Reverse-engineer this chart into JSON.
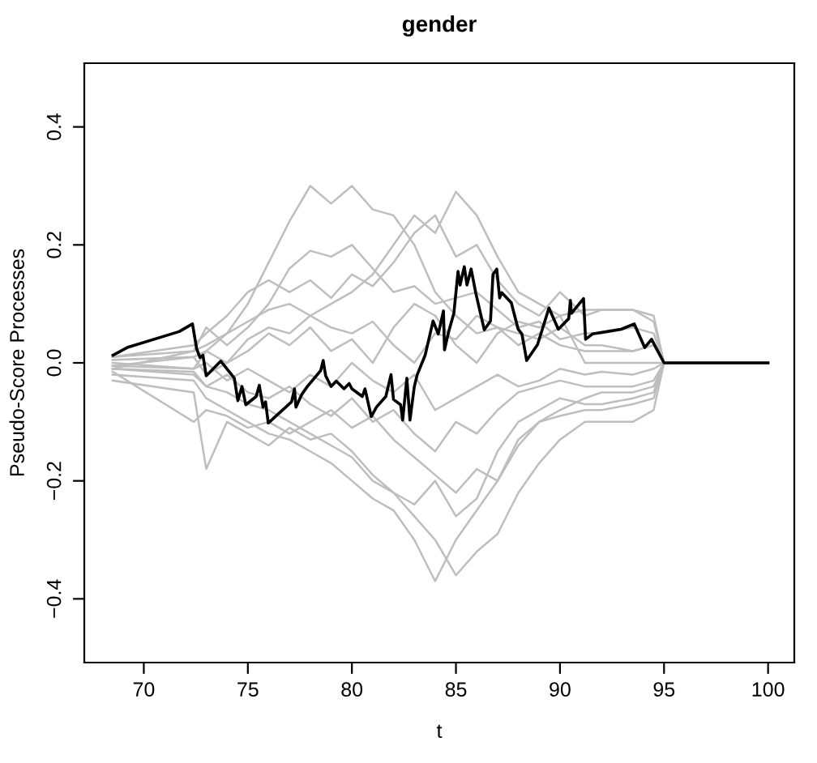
{
  "chart_data": {
    "type": "line",
    "title": "gender",
    "xlabel": "t",
    "ylabel": "Pseudo-Score Processes",
    "xlim": [
      67.14,
      101.26
    ],
    "ylim": [
      -0.508,
      0.508
    ],
    "xticks": [
      70,
      75,
      80,
      85,
      90,
      95,
      100
    ],
    "yticks": [
      {
        "value": -0.4,
        "label": "−0.4"
      },
      {
        "value": -0.2,
        "label": "−0.2"
      },
      {
        "value": 0,
        "label": "0.0"
      },
      {
        "value": 0.2,
        "label": "0.2"
      },
      {
        "value": 0.4,
        "label": "0.4"
      }
    ],
    "grid": false,
    "line_style": "solid",
    "marker": "none",
    "x": [
      68.5,
      72.4,
      73,
      74,
      75,
      76,
      77,
      78,
      79,
      80,
      81,
      82,
      83,
      84,
      85,
      86,
      87,
      88,
      89,
      90,
      91.2,
      92,
      93.5,
      94.5,
      95,
      100
    ],
    "series": [
      {
        "color": "#bebebe",
        "values": [
          -0.01,
          0.02,
          0.03,
          0.05,
          0.1,
          0.17,
          0.24,
          0.3,
          0.27,
          0.3,
          0.26,
          0.25,
          0.2,
          0.12,
          0.08,
          0.05,
          0.06,
          0.05,
          0.04,
          0.06,
          0.03,
          0.03,
          0.02,
          0.03,
          0,
          0
        ]
      },
      {
        "color": "#bebebe",
        "values": [
          -0.005,
          0.01,
          0.02,
          0.0,
          0.04,
          0.06,
          0.05,
          0.08,
          0.1,
          0.12,
          0.15,
          0.2,
          0.25,
          0.22,
          0.29,
          0.25,
          0.18,
          0.12,
          0.1,
          0.08,
          0.09,
          0.09,
          0.09,
          0.08,
          0,
          0
        ]
      },
      {
        "color": "#bebebe",
        "values": [
          -0.02,
          -0.03,
          -0.06,
          -0.08,
          -0.1,
          -0.12,
          -0.13,
          -0.15,
          -0.17,
          -0.2,
          -0.23,
          -0.25,
          -0.3,
          -0.37,
          -0.3,
          -0.25,
          -0.2,
          -0.14,
          -0.1,
          -0.08,
          -0.06,
          -0.05,
          -0.05,
          -0.04,
          0,
          0
        ]
      },
      {
        "color": "#bebebe",
        "values": [
          -0.01,
          -0.02,
          -0.04,
          -0.05,
          -0.07,
          -0.08,
          -0.1,
          -0.12,
          -0.14,
          -0.16,
          -0.2,
          -0.22,
          -0.26,
          -0.3,
          -0.36,
          -0.32,
          -0.29,
          -0.22,
          -0.17,
          -0.13,
          -0.1,
          -0.1,
          -0.1,
          -0.08,
          0,
          0
        ]
      },
      {
        "color": "#bebebe",
        "values": [
          -0.03,
          -0.05,
          -0.18,
          -0.1,
          -0.12,
          -0.14,
          -0.11,
          -0.13,
          -0.12,
          -0.15,
          -0.19,
          -0.22,
          -0.24,
          -0.2,
          -0.26,
          -0.23,
          -0.15,
          -0.1,
          -0.08,
          -0.06,
          -0.07,
          -0.07,
          -0.06,
          -0.05,
          0,
          0
        ]
      },
      {
        "color": "#bebebe",
        "values": [
          0.01,
          0.03,
          0.05,
          0.08,
          0.12,
          0.14,
          0.12,
          0.14,
          0.11,
          0.15,
          0.13,
          0.17,
          0.22,
          0.25,
          0.18,
          0.2,
          0.14,
          0.1,
          0.08,
          0.12,
          0.08,
          0.09,
          0.09,
          0.07,
          0,
          0
        ]
      },
      {
        "color": "#bebebe",
        "values": [
          0.0,
          -0.01,
          0.02,
          0.05,
          0.07,
          0.09,
          0.1,
          0.08,
          0.06,
          0.05,
          0.07,
          0.03,
          0.0,
          0.05,
          0.04,
          0.08,
          0.06,
          0.03,
          0.05,
          0.03,
          0.02,
          0.02,
          0.02,
          0.03,
          0,
          0
        ]
      },
      {
        "color": "#bebebe",
        "values": [
          -0.01,
          -0.015,
          -0.04,
          -0.02,
          -0.05,
          -0.06,
          -0.04,
          -0.07,
          -0.09,
          -0.06,
          -0.1,
          -0.08,
          -0.12,
          -0.15,
          -0.1,
          -0.12,
          -0.08,
          -0.05,
          -0.04,
          -0.03,
          -0.04,
          -0.04,
          -0.04,
          -0.03,
          0,
          0
        ]
      },
      {
        "color": "#bebebe",
        "values": [
          -0.015,
          -0.1,
          -0.08,
          -0.09,
          -0.11,
          -0.1,
          -0.12,
          -0.1,
          -0.08,
          -0.11,
          -0.09,
          -0.13,
          -0.16,
          -0.19,
          -0.22,
          -0.18,
          -0.2,
          -0.13,
          -0.1,
          -0.09,
          -0.08,
          -0.08,
          -0.07,
          -0.06,
          0,
          0
        ]
      },
      {
        "color": "#bebebe",
        "values": [
          0.005,
          0.01,
          -0.02,
          0.0,
          0.02,
          0.05,
          0.03,
          0.06,
          0.02,
          0.04,
          0.0,
          0.06,
          0.1,
          0.08,
          0.03,
          0.0,
          0.05,
          0.07,
          0.06,
          0.08,
          0.0,
          0.0,
          0.0,
          0.0,
          0,
          0
        ]
      },
      {
        "color": "#bebebe",
        "values": [
          -0.005,
          -0.01,
          0.0,
          -0.03,
          -0.01,
          -0.03,
          -0.05,
          -0.02,
          -0.04,
          0.0,
          -0.03,
          -0.05,
          -0.02,
          -0.08,
          -0.06,
          -0.04,
          -0.02,
          -0.04,
          -0.03,
          -0.01,
          -0.02,
          -0.015,
          -0.02,
          -0.01,
          0,
          0
        ]
      },
      {
        "color": "#bebebe",
        "values": [
          0.01,
          0.02,
          0.06,
          0.03,
          0.06,
          0.1,
          0.16,
          0.19,
          0.18,
          0.2,
          0.16,
          0.12,
          0.13,
          0.1,
          0.11,
          0.12,
          0.09,
          0.06,
          0.07,
          0.04,
          0.05,
          0.05,
          0.06,
          0.05,
          0,
          0
        ]
      },
      {
        "color": "#000000",
        "x": [
          68.52,
          69.2,
          71.7,
          72.34,
          72.54,
          72.7,
          72.84,
          73.0,
          73.7,
          74.35,
          74.52,
          74.72,
          74.9,
          75.4,
          75.55,
          75.73,
          75.85,
          75.98,
          77.1,
          77.24,
          77.31,
          77.6,
          77.86,
          78.5,
          78.62,
          78.74,
          79.0,
          79.25,
          79.62,
          79.87,
          80.0,
          80.5,
          80.63,
          80.93,
          81.18,
          81.63,
          81.88,
          82.0,
          82.34,
          82.44,
          82.64,
          82.79,
          83.0,
          83.14,
          83.52,
          83.9,
          84.15,
          84.4,
          84.45,
          84.65,
          84.9,
          85.1,
          85.2,
          85.4,
          85.53,
          85.73,
          85.95,
          86.36,
          86.66,
          86.78,
          86.96,
          87.1,
          87.2,
          87.66,
          87.99,
          88.17,
          88.4,
          88.92,
          89.47,
          89.92,
          90.42,
          90.5,
          90.55,
          91.13,
          91.23,
          91.56,
          92.94,
          93.57,
          94.07,
          94.4,
          95.0,
          100
        ],
        "values": [
          0.013,
          0.026,
          0.053,
          0.066,
          0.024,
          0.009,
          0.013,
          -0.022,
          0.003,
          -0.026,
          -0.064,
          -0.04,
          -0.071,
          -0.057,
          -0.038,
          -0.075,
          -0.066,
          -0.102,
          -0.066,
          -0.044,
          -0.075,
          -0.053,
          -0.04,
          -0.013,
          0.004,
          -0.022,
          -0.04,
          -0.031,
          -0.044,
          -0.035,
          -0.044,
          -0.057,
          -0.044,
          -0.091,
          -0.075,
          -0.057,
          -0.02,
          -0.062,
          -0.071,
          -0.097,
          -0.026,
          -0.097,
          -0.04,
          -0.02,
          0.013,
          0.071,
          0.049,
          0.088,
          0.022,
          0.053,
          0.084,
          0.155,
          0.132,
          0.163,
          0.132,
          0.159,
          0.119,
          0.056,
          0.071,
          0.15,
          0.159,
          0.11,
          0.119,
          0.102,
          0.057,
          0.049,
          0.004,
          0.031,
          0.093,
          0.057,
          0.075,
          0.106,
          0.084,
          0.109,
          0.04,
          0.049,
          0.057,
          0.066,
          0.026,
          0.04,
          0.0,
          0.0
        ]
      }
    ]
  }
}
